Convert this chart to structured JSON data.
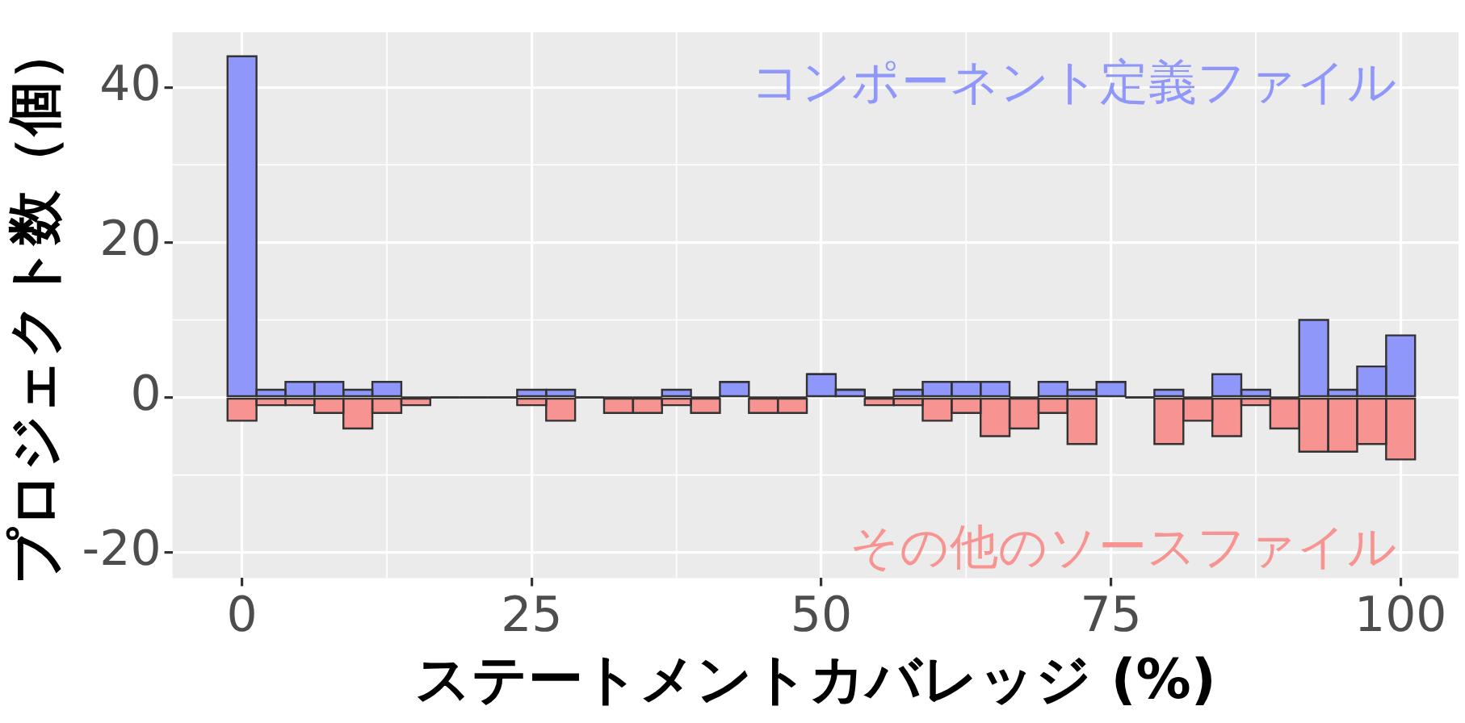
{
  "chart_data": {
    "type": "bar",
    "xlabel": "ステートメントカバレッジ (%)",
    "ylabel": "プロジェクト数（個）",
    "x": [
      0,
      2.5,
      5,
      7.5,
      10,
      12.5,
      15,
      17.5,
      20,
      22.5,
      25,
      27.5,
      30,
      32.5,
      35,
      37.5,
      40,
      42.5,
      45,
      47.5,
      50,
      52.5,
      55,
      57.5,
      60,
      62.5,
      65,
      67.5,
      70,
      72.5,
      75,
      77.5,
      80,
      82.5,
      85,
      87.5,
      90,
      92.5,
      95,
      97.5,
      100
    ],
    "series": [
      {
        "name": "コンポーネント定義ファイル",
        "color": "#8f97fa",
        "values": [
          44,
          1,
          2,
          2,
          1,
          2,
          0,
          0,
          0,
          0,
          1,
          1,
          0,
          0,
          0,
          1,
          0,
          2,
          0,
          0,
          3,
          1,
          0,
          1,
          2,
          2,
          2,
          0,
          2,
          1,
          2,
          0,
          1,
          0,
          3,
          1,
          0,
          10,
          1,
          4,
          8
        ]
      },
      {
        "name": "その他のソースファイル",
        "color": "#f79390",
        "values": [
          -3,
          -1,
          -1,
          -2,
          -4,
          -2,
          -1,
          0,
          0,
          0,
          -1,
          -3,
          0,
          -2,
          -2,
          -1,
          -2,
          0,
          -2,
          -2,
          0,
          0,
          -1,
          -1,
          -3,
          -2,
          -5,
          -4,
          -2,
          -6,
          0,
          0,
          -6,
          -3,
          -5,
          -1,
          -4,
          -7,
          -7,
          -6,
          -8
        ]
      }
    ],
    "xlim": [
      -6,
      105
    ],
    "ylim": [
      -23.3,
      47.1
    ],
    "xticks": [
      0,
      25,
      50,
      75,
      100
    ],
    "yticks": [
      -20,
      0,
      20,
      40
    ],
    "grid": true,
    "legend": false,
    "stacked": true
  }
}
